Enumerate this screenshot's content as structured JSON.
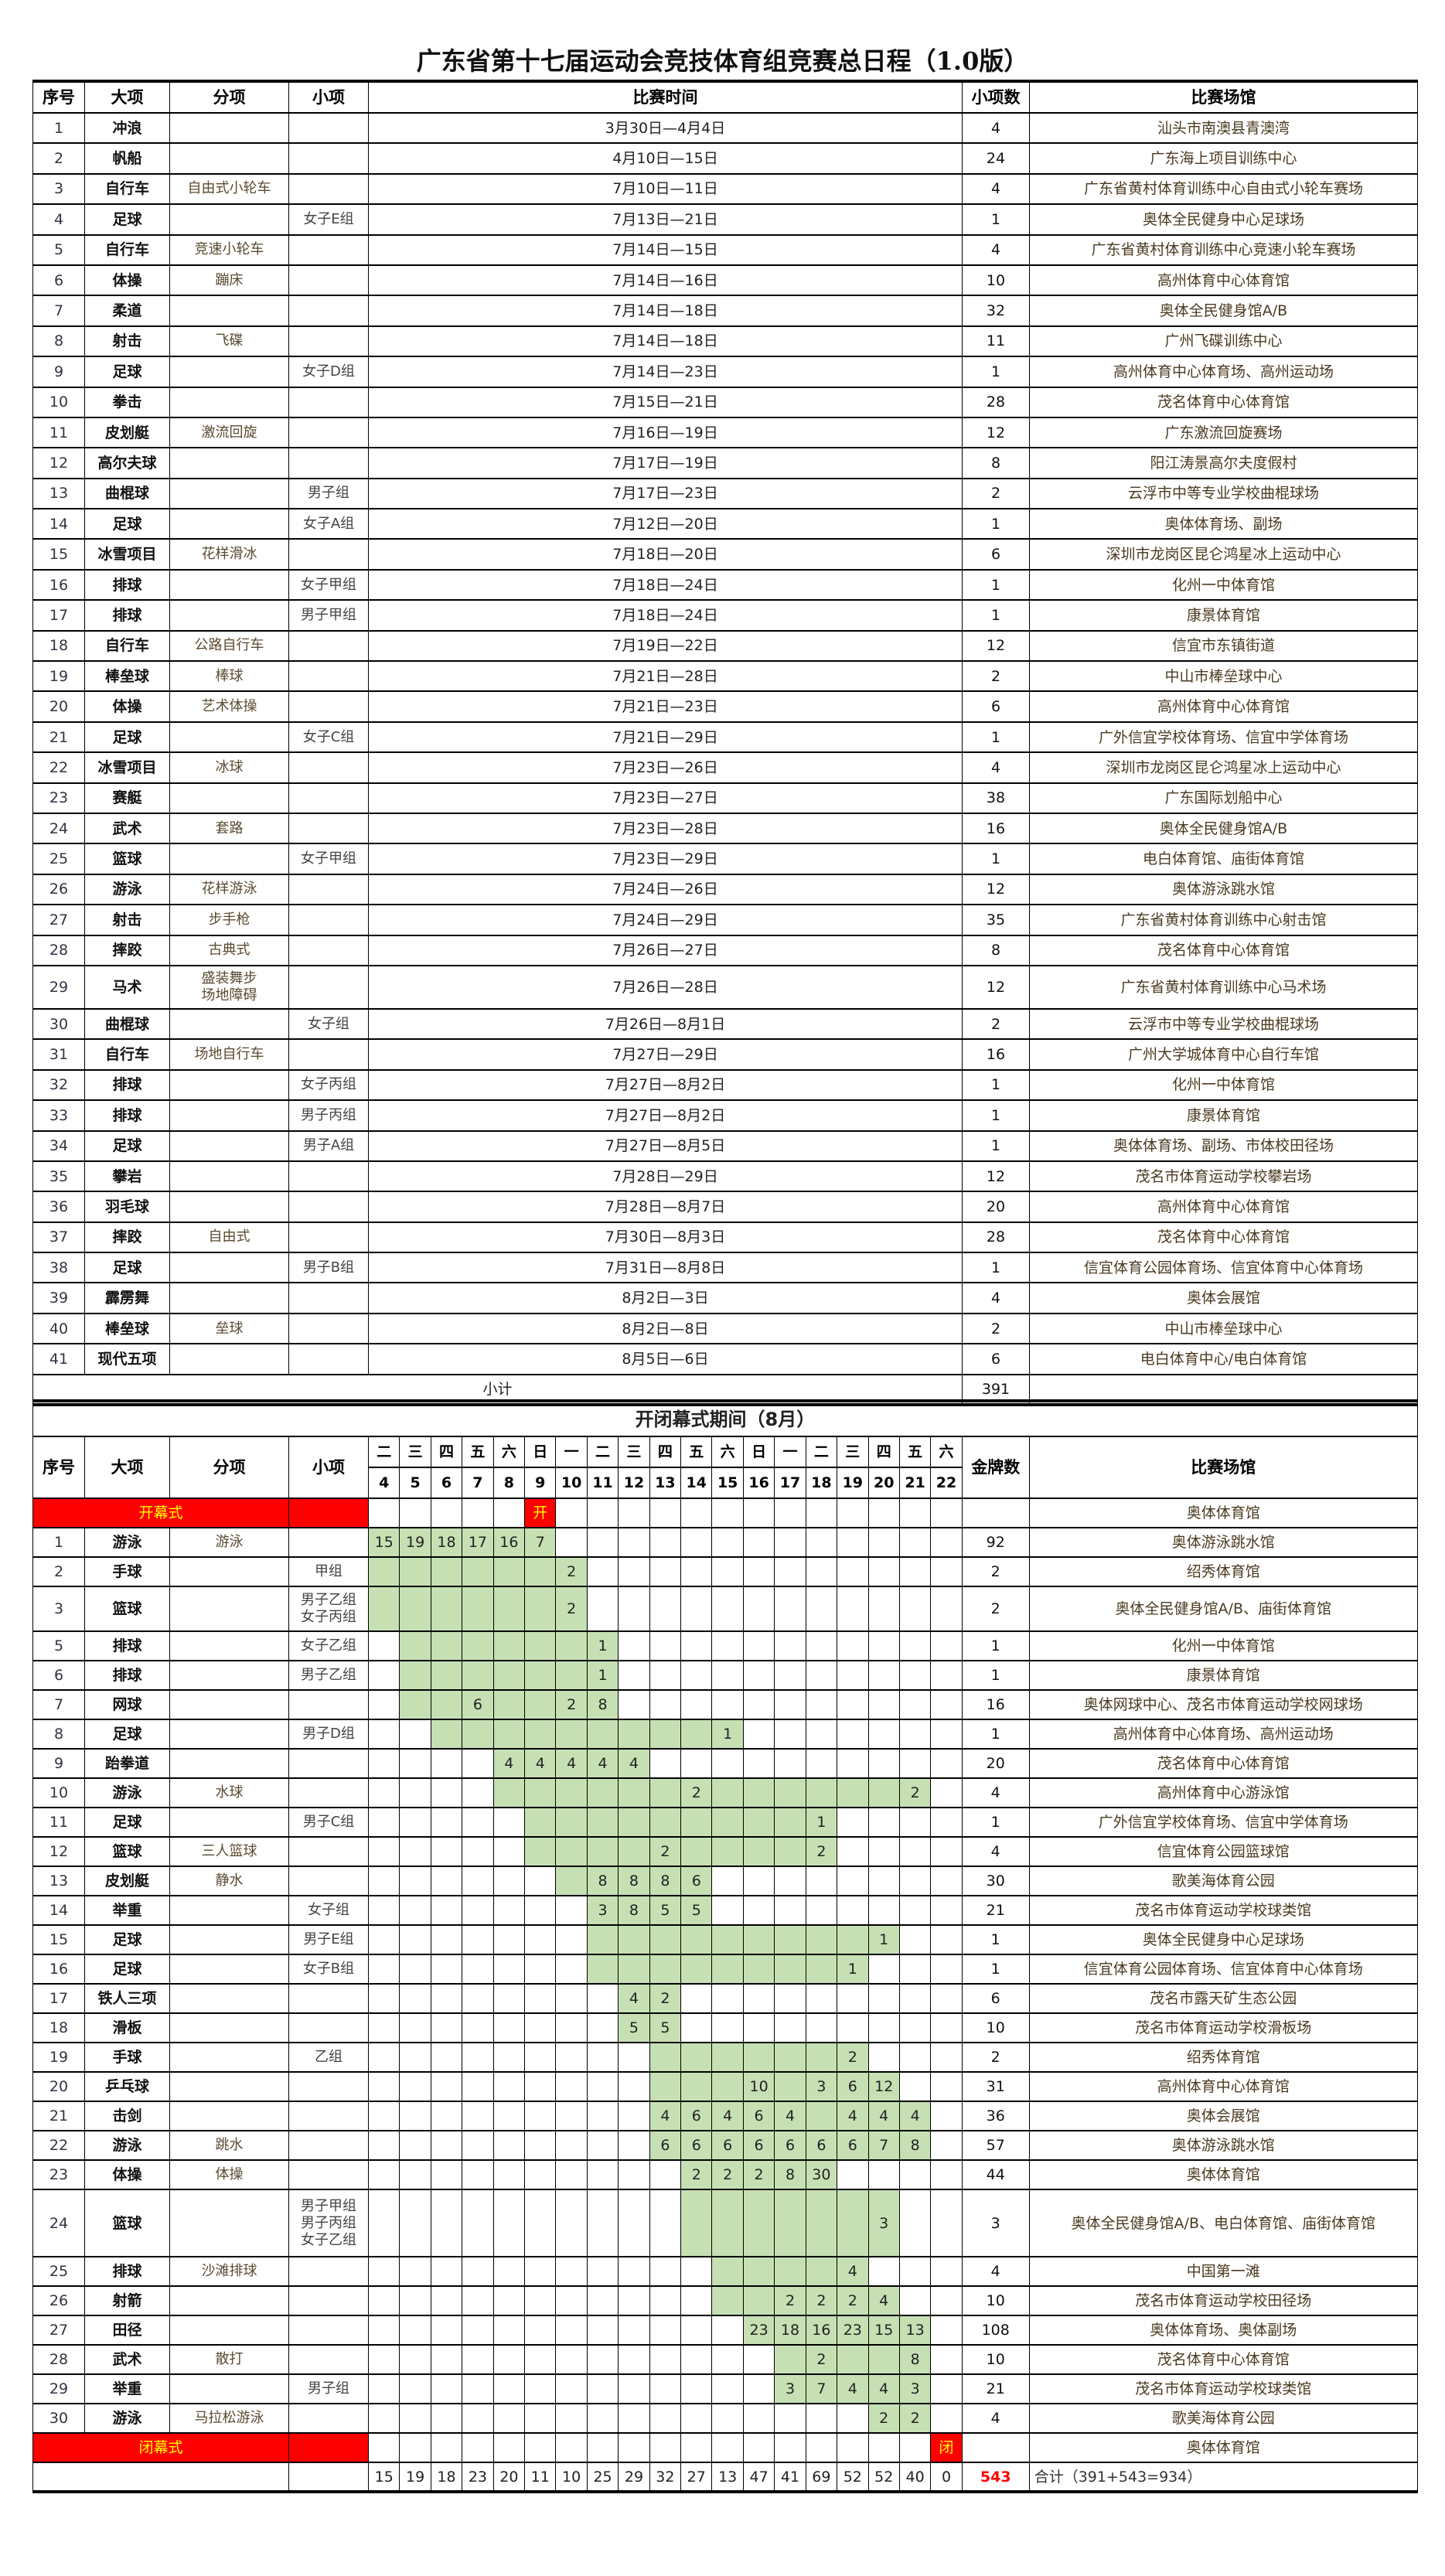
{
  "title": "广东省第十七届运动会竞技体育组竞赛总日程（1.0版）",
  "table1": {
    "headers": [
      "序号",
      "大项",
      "分项",
      "小项",
      "比赛时间",
      "小项数",
      "比赛场馆"
    ],
    "rows": [
      [
        "1",
        "冲浪",
        "",
        "",
        "3月30日—4月4日",
        "4",
        "汕头市南澳县青澳湾"
      ],
      [
        "2",
        "帆船",
        "",
        "",
        "4月10日—15日",
        "24",
        "广东海上项目训练中心"
      ],
      [
        "3",
        "自行车",
        "自由式小轮车",
        "",
        "7月10日—11日",
        "4",
        "广东省黄村体育训练中心自由式小轮车赛场"
      ],
      [
        "4",
        "足球",
        "",
        "女子E组",
        "7月13日—21日",
        "1",
        "奥体全民健身中心足球场"
      ],
      [
        "5",
        "自行车",
        "竞速小轮车",
        "",
        "7月14日—15日",
        "4",
        "广东省黄村体育训练中心竞速小轮车赛场"
      ],
      [
        "6",
        "体操",
        "蹦床",
        "",
        "7月14日—16日",
        "10",
        "高州体育中心体育馆"
      ],
      [
        "7",
        "柔道",
        "",
        "",
        "7月14日—18日",
        "32",
        "奥体全民健身馆A/B"
      ],
      [
        "8",
        "射击",
        "飞碟",
        "",
        "7月14日—18日",
        "11",
        "广州飞碟训练中心"
      ],
      [
        "9",
        "足球",
        "",
        "女子D组",
        "7月14日—23日",
        "1",
        "高州体育中心体育场、高州运动场"
      ],
      [
        "10",
        "拳击",
        "",
        "",
        "7月15日—21日",
        "28",
        "茂名体育中心体育馆"
      ],
      [
        "11",
        "皮划艇",
        "激流回旋",
        "",
        "7月16日—19日",
        "12",
        "广东激流回旋赛场"
      ],
      [
        "12",
        "高尔夫球",
        "",
        "",
        "7月17日—19日",
        "8",
        "阳江涛景高尔夫度假村"
      ],
      [
        "13",
        "曲棍球",
        "",
        "男子组",
        "7月17日—23日",
        "2",
        "云浮市中等专业学校曲棍球场"
      ],
      [
        "14",
        "足球",
        "",
        "女子A组",
        "7月12日—20日",
        "1",
        "奥体体育场、副场"
      ],
      [
        "15",
        "冰雪项目",
        "花样滑冰",
        "",
        "7月18日—20日",
        "6",
        "深圳市龙岗区昆仑鸿星冰上运动中心"
      ],
      [
        "16",
        "排球",
        "",
        "女子甲组",
        "7月18日—24日",
        "1",
        "化州一中体育馆"
      ],
      [
        "17",
        "排球",
        "",
        "男子甲组",
        "7月18日—24日",
        "1",
        "康景体育馆"
      ],
      [
        "18",
        "自行车",
        "公路自行车",
        "",
        "7月19日—22日",
        "12",
        "信宜市东镇街道"
      ],
      [
        "19",
        "棒垒球",
        "棒球",
        "",
        "7月21日—28日",
        "2",
        "中山市棒垒球中心"
      ],
      [
        "20",
        "体操",
        "艺术体操",
        "",
        "7月21日—23日",
        "6",
        "高州体育中心体育馆"
      ],
      [
        "21",
        "足球",
        "",
        "女子C组",
        "7月21日—29日",
        "1",
        "广外信宜学校体育场、信宜中学体育场"
      ],
      [
        "22",
        "冰雪项目",
        "冰球",
        "",
        "7月23日—26日",
        "4",
        "深圳市龙岗区昆仑鸿星冰上运动中心"
      ],
      [
        "23",
        "赛艇",
        "",
        "",
        "7月23日—27日",
        "38",
        "广东国际划船中心"
      ],
      [
        "24",
        "武术",
        "套路",
        "",
        "7月23日—28日",
        "16",
        "奥体全民健身馆A/B"
      ],
      [
        "25",
        "篮球",
        "",
        "女子甲组",
        "7月23日—29日",
        "1",
        "电白体育馆、庙街体育馆"
      ],
      [
        "26",
        "游泳",
        "花样游泳",
        "",
        "7月24日—26日",
        "12",
        "奥体游泳跳水馆"
      ],
      [
        "27",
        "射击",
        "步手枪",
        "",
        "7月24日—29日",
        "35",
        "广东省黄村体育训练中心射击馆"
      ],
      [
        "28",
        "摔跤",
        "古典式",
        "",
        "7月26日—27日",
        "8",
        "茂名体育中心体育馆"
      ],
      [
        "29",
        "马术",
        "盛装舞步\n场地障碍",
        "",
        "7月26日—28日",
        "12",
        "广东省黄村体育训练中心马术场"
      ],
      [
        "30",
        "曲棍球",
        "",
        "女子组",
        "7月26日—8月1日",
        "2",
        "云浮市中等专业学校曲棍球场"
      ],
      [
        "31",
        "自行车",
        "场地自行车",
        "",
        "7月27日—29日",
        "16",
        "广州大学城体育中心自行车馆"
      ],
      [
        "32",
        "排球",
        "",
        "女子丙组",
        "7月27日—8月2日",
        "1",
        "化州一中体育馆"
      ],
      [
        "33",
        "排球",
        "",
        "男子丙组",
        "7月27日—8月2日",
        "1",
        "康景体育馆"
      ],
      [
        "34",
        "足球",
        "",
        "男子A组",
        "7月27日—8月5日",
        "1",
        "奥体体育场、副场、市体校田径场"
      ],
      [
        "35",
        "攀岩",
        "",
        "",
        "7月28日—29日",
        "12",
        "茂名市体育运动学校攀岩场"
      ],
      [
        "36",
        "羽毛球",
        "",
        "",
        "7月28日—8月7日",
        "20",
        "高州体育中心体育馆"
      ],
      [
        "37",
        "摔跤",
        "自由式",
        "",
        "7月30日—8月3日",
        "28",
        "茂名体育中心体育馆"
      ],
      [
        "38",
        "足球",
        "",
        "男子B组",
        "7月31日—8月8日",
        "1",
        "信宜体育公园体育场、信宜体育中心体育场"
      ],
      [
        "39",
        "霹雳舞",
        "",
        "",
        "8月2日—3日",
        "4",
        "奥体会展馆"
      ],
      [
        "40",
        "棒垒球",
        "垒球",
        "",
        "8月2日—8日",
        "2",
        "中山市棒垒球中心"
      ],
      [
        "41",
        "现代五项",
        "",
        "",
        "8月5日—6日",
        "6",
        "电白体育中心/电白体育馆"
      ]
    ],
    "subtotal_label": "小计",
    "subtotal_value": "391"
  },
  "table2": {
    "section_title": "开闭幕式期间（8月）",
    "headers": {
      "no": "序号",
      "sport": "大项",
      "sub": "分项",
      "group": "小项",
      "medals": "金牌数",
      "venue": "比赛场馆"
    },
    "weekdays": [
      "二",
      "三",
      "四",
      "五",
      "六",
      "日",
      "一",
      "二",
      "三",
      "四",
      "五",
      "六",
      "日",
      "一",
      "二",
      "三",
      "四",
      "五",
      "六"
    ],
    "days": [
      4,
      5,
      6,
      7,
      8,
      9,
      10,
      11,
      12,
      13,
      14,
      15,
      16,
      17,
      18,
      19,
      20,
      21,
      22
    ],
    "opening": {
      "label": "开幕式",
      "day": 9,
      "mark": "开",
      "venue": "奥体体育馆"
    },
    "closing": {
      "label": "闭幕式",
      "day": 22,
      "mark": "闭",
      "venue": "奥体体育馆"
    },
    "colors": {
      "active": "#c6e0b4",
      "ceremony": "#ff0000",
      "ceremony_text": "#ffff00"
    },
    "rows": [
      {
        "no": "1",
        "sport": "游泳",
        "sub": "游泳",
        "group": "",
        "span": [
          4,
          9
        ],
        "medals": {
          "4": 15,
          "5": 19,
          "6": 18,
          "7": 17,
          "8": 16,
          "9": 7
        },
        "total": "92",
        "venue": "奥体游泳跳水馆"
      },
      {
        "no": "2",
        "sport": "手球",
        "sub": "",
        "group": "甲组",
        "span": [
          4,
          10
        ],
        "medals": {
          "10": 2
        },
        "total": "2",
        "venue": "绍秀体育馆"
      },
      {
        "no": "3",
        "sport": "篮球",
        "sub": "",
        "group": "男子乙组\n女子丙组",
        "span": [
          4,
          10
        ],
        "medals": {
          "10": 2
        },
        "total": "2",
        "venue": "奥体全民健身馆A/B、庙街体育馆"
      },
      {
        "no": "5",
        "sport": "排球",
        "sub": "",
        "group": "女子乙组",
        "span": [
          5,
          11
        ],
        "medals": {
          "11": 1
        },
        "total": "1",
        "venue": "化州一中体育馆"
      },
      {
        "no": "6",
        "sport": "排球",
        "sub": "",
        "group": "男子乙组",
        "span": [
          5,
          11
        ],
        "medals": {
          "11": 1
        },
        "total": "1",
        "venue": "康景体育馆"
      },
      {
        "no": "7",
        "sport": "网球",
        "sub": "",
        "group": "",
        "span": [
          5,
          11
        ],
        "medals": {
          "7": 6,
          "10": 2,
          "11": 8
        },
        "total": "16",
        "venue": "奥体网球中心、茂名市体育运动学校网球场"
      },
      {
        "no": "8",
        "sport": "足球",
        "sub": "",
        "group": "男子D组",
        "span": [
          6,
          15
        ],
        "medals": {
          "15": 1
        },
        "total": "1",
        "venue": "高州体育中心体育场、高州运动场"
      },
      {
        "no": "9",
        "sport": "跆拳道",
        "sub": "",
        "group": "",
        "span": [
          8,
          12
        ],
        "medals": {
          "8": 4,
          "9": 4,
          "10": 4,
          "11": 4,
          "12": 4
        },
        "total": "20",
        "venue": "茂名体育中心体育馆"
      },
      {
        "no": "10",
        "sport": "游泳",
        "sub": "水球",
        "group": "",
        "span": [
          8,
          21
        ],
        "medals": {
          "14": 2,
          "21": 2
        },
        "total": "4",
        "venue": "高州体育中心游泳馆"
      },
      {
        "no": "11",
        "sport": "足球",
        "sub": "",
        "group": "男子C组",
        "span": [
          9,
          18
        ],
        "medals": {
          "18": 1
        },
        "total": "1",
        "venue": "广外信宜学校体育场、信宜中学体育场"
      },
      {
        "no": "12",
        "sport": "篮球",
        "sub": "三人篮球",
        "group": "",
        "span": [
          9,
          18
        ],
        "medals": {
          "13": 2,
          "18": 2
        },
        "total": "4",
        "venue": "信宜体育公园篮球馆"
      },
      {
        "no": "13",
        "sport": "皮划艇",
        "sub": "静水",
        "group": "",
        "span": [
          10,
          14
        ],
        "medals": {
          "11": 8,
          "12": 8,
          "13": 8,
          "14": 6
        },
        "total": "30",
        "venue": "歌美海体育公园"
      },
      {
        "no": "14",
        "sport": "举重",
        "sub": "",
        "group": "女子组",
        "span": [
          11,
          14
        ],
        "medals": {
          "11": 3,
          "12": 8,
          "13": 5,
          "14": 5
        },
        "total": "21",
        "venue": "茂名市体育运动学校球类馆"
      },
      {
        "no": "15",
        "sport": "足球",
        "sub": "",
        "group": "男子E组",
        "span": [
          11,
          20
        ],
        "medals": {
          "20": 1
        },
        "total": "1",
        "venue": "奥体全民健身中心足球场"
      },
      {
        "no": "16",
        "sport": "足球",
        "sub": "",
        "group": "女子B组",
        "span": [
          11,
          19
        ],
        "medals": {
          "19": 1
        },
        "total": "1",
        "venue": "信宜体育公园体育场、信宜体育中心体育场"
      },
      {
        "no": "17",
        "sport": "铁人三项",
        "sub": "",
        "group": "",
        "span": [
          12,
          13
        ],
        "medals": {
          "12": 4,
          "13": 2
        },
        "total": "6",
        "venue": "茂名市露天矿生态公园"
      },
      {
        "no": "18",
        "sport": "滑板",
        "sub": "",
        "group": "",
        "span": [
          12,
          13
        ],
        "medals": {
          "12": 5,
          "13": 5
        },
        "total": "10",
        "venue": "茂名市体育运动学校滑板场"
      },
      {
        "no": "19",
        "sport": "手球",
        "sub": "",
        "group": "乙组",
        "span": [
          13,
          19
        ],
        "medals": {
          "19": 2
        },
        "total": "2",
        "venue": "绍秀体育馆"
      },
      {
        "no": "20",
        "sport": "乒乓球",
        "sub": "",
        "group": "",
        "span": [
          13,
          20
        ],
        "medals": {
          "16": 10,
          "18": 3,
          "19": 6,
          "20": 12
        },
        "total": "31",
        "venue": "高州体育中心体育馆"
      },
      {
        "no": "21",
        "sport": "击剑",
        "sub": "",
        "group": "",
        "span": [
          13,
          21
        ],
        "medals": {
          "13": 4,
          "14": 6,
          "15": 4,
          "16": 6,
          "17": 4,
          "19": 4,
          "20": 4,
          "21": 4
        },
        "total": "36",
        "venue": "奥体会展馆"
      },
      {
        "no": "22",
        "sport": "游泳",
        "sub": "跳水",
        "group": "",
        "span": [
          13,
          21
        ],
        "medals": {
          "13": 6,
          "14": 6,
          "15": 6,
          "16": 6,
          "17": 6,
          "18": 6,
          "19": 6,
          "20": 7,
          "21": 8
        },
        "total": "57",
        "venue": "奥体游泳跳水馆"
      },
      {
        "no": "23",
        "sport": "体操",
        "sub": "体操",
        "group": "",
        "span": [
          14,
          18
        ],
        "medals": {
          "14": 2,
          "15": 2,
          "16": 2,
          "17": 8,
          "18": 30
        },
        "total": "44",
        "venue": "奥体体育馆"
      },
      {
        "no": "24",
        "sport": "篮球",
        "sub": "",
        "group": "男子甲组\n男子丙组\n女子乙组",
        "span": [
          14,
          20
        ],
        "medals": {
          "20": 3
        },
        "total": "3",
        "venue": "奥体全民健身馆A/B、电白体育馆、庙街体育馆"
      },
      {
        "no": "25",
        "sport": "排球",
        "sub": "沙滩排球",
        "group": "",
        "span": [
          15,
          19
        ],
        "medals": {
          "19": 4
        },
        "total": "4",
        "venue": "中国第一滩"
      },
      {
        "no": "26",
        "sport": "射箭",
        "sub": "",
        "group": "",
        "span": [
          15,
          20
        ],
        "medals": {
          "17": 2,
          "18": 2,
          "19": 2,
          "20": 4
        },
        "total": "10",
        "venue": "茂名市体育运动学校田径场"
      },
      {
        "no": "27",
        "sport": "田径",
        "sub": "",
        "group": "",
        "span": [
          16,
          21
        ],
        "medals": {
          "16": 23,
          "17": 18,
          "18": 16,
          "19": 23,
          "20": 15,
          "21": 13
        },
        "total": "108",
        "venue": "奥体体育场、奥体副场"
      },
      {
        "no": "28",
        "sport": "武术",
        "sub": "散打",
        "group": "",
        "span": [
          17,
          21
        ],
        "medals": {
          "18": 2,
          "21": 8
        },
        "total": "10",
        "venue": "茂名体育中心体育馆"
      },
      {
        "no": "29",
        "sport": "举重",
        "sub": "",
        "group": "男子组",
        "span": [
          17,
          21
        ],
        "medals": {
          "17": 3,
          "18": 7,
          "19": 4,
          "20": 4,
          "21": 3
        },
        "total": "21",
        "venue": "茂名市体育运动学校球类馆"
      },
      {
        "no": "30",
        "sport": "游泳",
        "sub": "马拉松游泳",
        "group": "",
        "span": [
          20,
          21
        ],
        "medals": {
          "20": 2,
          "21": 2
        },
        "total": "4",
        "venue": "歌美海体育公园"
      }
    ],
    "daily_totals": [
      "15",
      "19",
      "18",
      "23",
      "20",
      "11",
      "10",
      "25",
      "29",
      "32",
      "27",
      "13",
      "47",
      "41",
      "69",
      "52",
      "52",
      "40",
      "0"
    ],
    "medal_total": "543",
    "grand_total_label": "合计（391+543=934）"
  }
}
